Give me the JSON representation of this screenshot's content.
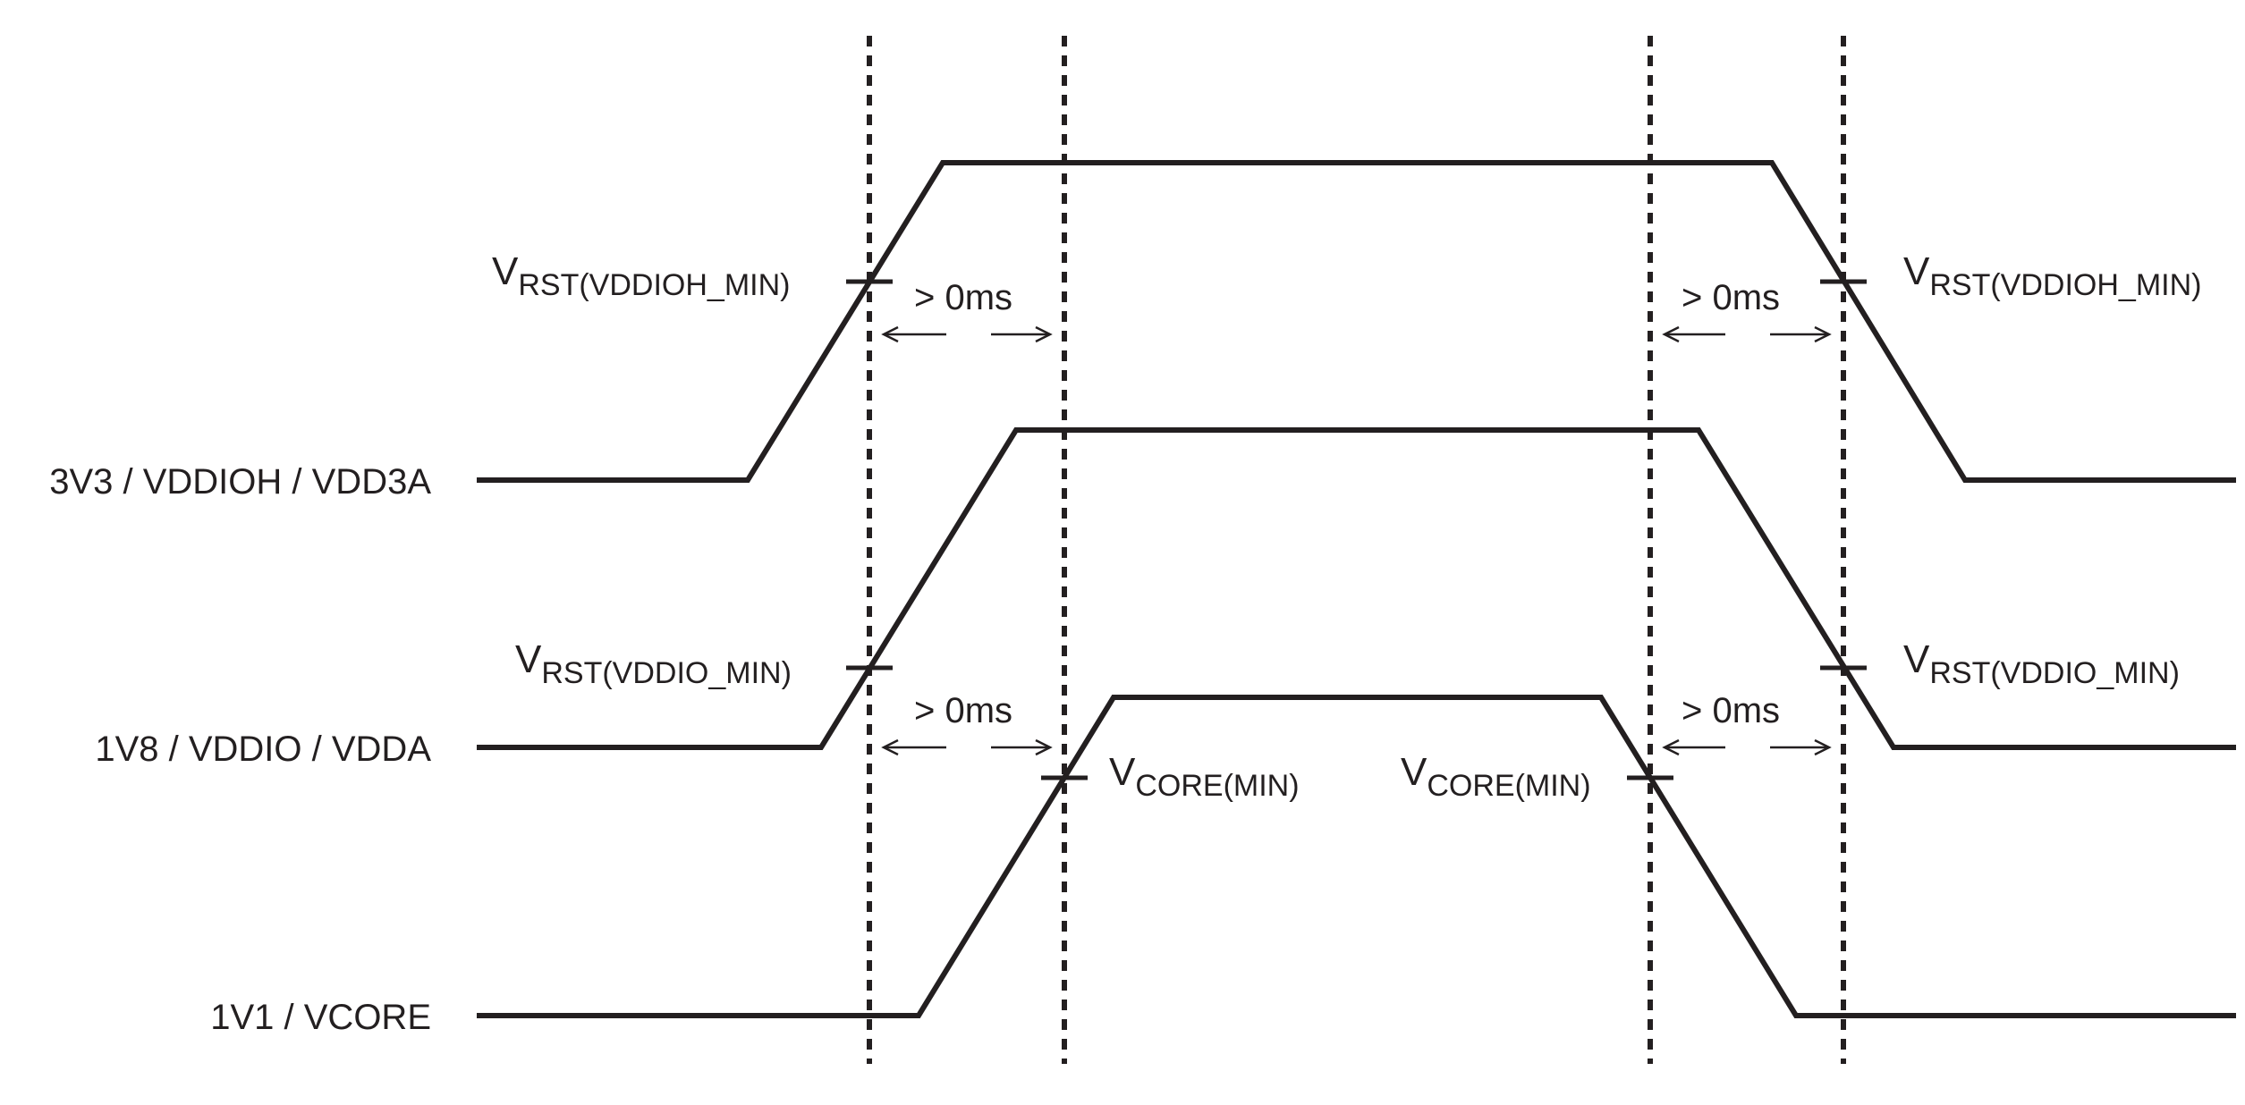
{
  "rails": [
    {
      "id": "3v3",
      "label": "3V3 /  VDDIOH / VDD3A"
    },
    {
      "id": "1v8",
      "label": "1V8 /  VDDIO / VDDA"
    },
    {
      "id": "1v1",
      "label": "1V1 /  VCORE"
    }
  ],
  "thresholds": {
    "vrst_vddioh": {
      "main": "V",
      "sub": "RST(VDDIOH_MIN)"
    },
    "vrst_vddio": {
      "main": "V",
      "sub": "RST(VDDIO_MIN)"
    },
    "vcore": {
      "main": "V",
      "sub": "CORE(MIN)"
    }
  },
  "delay_label": "> 0ms"
}
